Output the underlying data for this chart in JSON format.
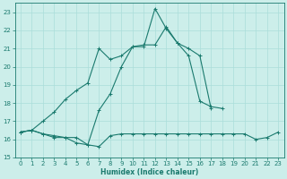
{
  "xlabel": "Humidex (Indice chaleur)",
  "x_values": [
    0,
    1,
    2,
    3,
    4,
    5,
    6,
    7,
    8,
    9,
    10,
    11,
    12,
    13,
    14,
    15,
    16,
    17,
    18,
    19,
    20,
    21,
    22,
    23
  ],
  "series1": [
    16.4,
    16.5,
    16.3,
    16.2,
    16.1,
    16.1,
    15.7,
    15.6,
    16.2,
    16.3,
    16.3,
    16.3,
    16.3,
    16.3,
    16.3,
    16.3,
    16.3,
    16.3,
    16.3,
    16.3,
    16.3,
    16.0,
    16.1,
    16.4
  ],
  "series2": [
    16.4,
    16.5,
    16.3,
    16.1,
    16.1,
    15.8,
    15.7,
    17.6,
    18.5,
    20.0,
    21.1,
    21.2,
    21.2,
    22.2,
    21.3,
    20.6,
    18.1,
    17.8,
    17.7,
    null,
    null,
    null,
    null,
    null
  ],
  "series3": [
    16.4,
    16.5,
    17.0,
    17.5,
    18.2,
    18.7,
    19.1,
    21.0,
    20.4,
    20.6,
    21.1,
    21.1,
    23.2,
    22.1,
    21.3,
    21.0,
    20.6,
    17.7,
    null,
    null,
    null,
    null,
    null,
    null
  ],
  "xlim": [
    -0.5,
    23.5
  ],
  "ylim": [
    15,
    23.5
  ],
  "yticks": [
    15,
    16,
    17,
    18,
    19,
    20,
    21,
    22,
    23
  ],
  "xticks": [
    0,
    1,
    2,
    3,
    4,
    5,
    6,
    7,
    8,
    9,
    10,
    11,
    12,
    13,
    14,
    15,
    16,
    17,
    18,
    19,
    20,
    21,
    22,
    23
  ],
  "line_color": "#1a7a6e",
  "bg_color": "#cceeea",
  "grid_color": "#aaddda"
}
